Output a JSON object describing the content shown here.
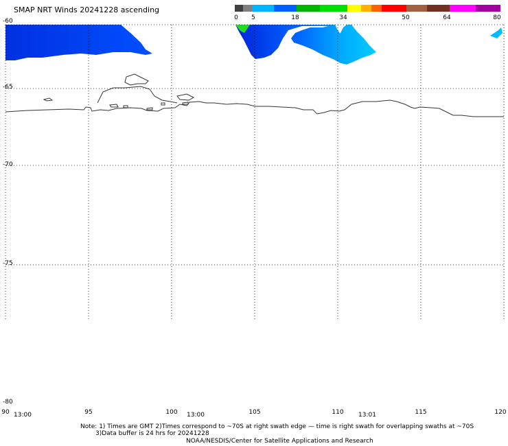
{
  "title": "SMAP NRT Winds 20241228 ascending",
  "colorbar": {
    "ticks": [
      "0",
      "5",
      "18",
      "34",
      "50",
      "64",
      "80"
    ],
    "colors": [
      "#404040",
      "#808080",
      "#00b4ff",
      "#0060ff",
      "#00c000",
      "#00e000",
      "#ffff00",
      "#ff9000",
      "#ff3000",
      "#ff0000",
      "#a06040",
      "#703020",
      "#ff00ff",
      "#a000a0"
    ]
  },
  "map": {
    "lat_labels": [
      "-60",
      "-65",
      "-70",
      "-75",
      "-80"
    ],
    "lon_labels": [
      "90",
      "95",
      "100",
      "105",
      "110",
      "115",
      "120"
    ],
    "time_labels": [
      "13:00",
      "13:00",
      "13:01"
    ],
    "wind_color_low": "#0033dd",
    "wind_color_mid": "#0099ff",
    "wind_color_high": "#00ccff",
    "wind_color_green": "#22cc22"
  },
  "footer": {
    "note_line1": "Note: 1) Times are GMT 2)Times correspond to ~70S at right swath edge — time is right swath for overlapping swaths at ~70S",
    "note_line2": "3)Data buffer is 24 hrs for 20241228",
    "credit": "NOAA/NESDIS/Center for Satellite Applications and Research"
  }
}
